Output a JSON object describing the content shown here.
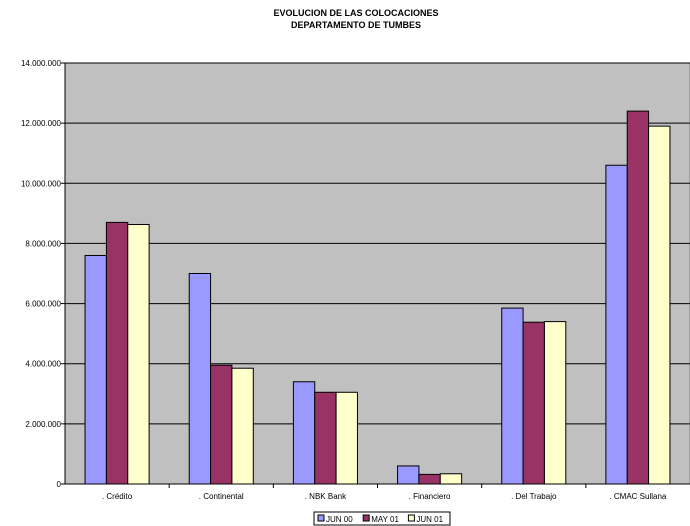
{
  "chart_data": {
    "type": "bar",
    "title": "EVOLUCION DE LAS COLOCACIONES",
    "subtitle": "DEPARTAMENTO DE TUMBES",
    "categories": [
      ". Crédito",
      ". Continental",
      ". NBK Bank",
      ". Financiero",
      ". Del Trabajo",
      ". CMAC Sullana"
    ],
    "series": [
      {
        "name": "JUN 00",
        "color": "#9999ff",
        "values": [
          7600000,
          7000000,
          3400000,
          600000,
          5850000,
          10600000
        ]
      },
      {
        "name": "MAY 01",
        "color": "#993366",
        "values": [
          8700000,
          3950000,
          3050000,
          320000,
          5380000,
          12400000
        ]
      },
      {
        "name": "JUN 01",
        "color": "#ffffcc",
        "values": [
          8630000,
          3850000,
          3050000,
          340000,
          5400000,
          11900000
        ]
      }
    ],
    "ylim": [
      0,
      14000000
    ],
    "yticks": [
      0,
      2000000,
      4000000,
      6000000,
      8000000,
      10000000,
      12000000,
      14000000
    ],
    "ytick_labels": [
      "0",
      "2.000.000",
      "4.000.000",
      "6.000.000",
      "8.000.000",
      "10.000.000",
      "12.000.000",
      "14.000.000"
    ],
    "grid": true,
    "plot_background": "#c0c0c0",
    "legend_position": "bottom"
  }
}
